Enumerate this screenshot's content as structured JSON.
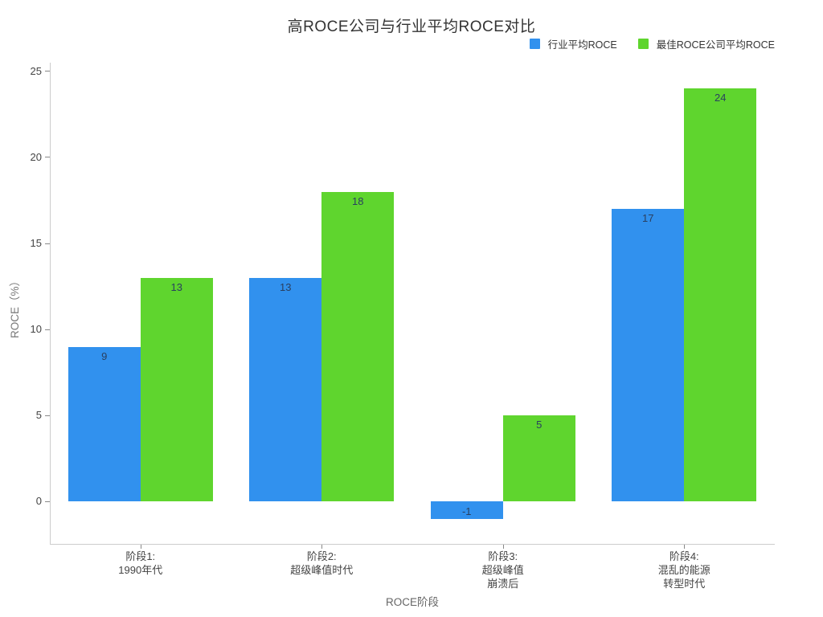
{
  "chart_data": {
    "type": "bar",
    "title": "高ROCE公司与行业平均ROCE对比",
    "xlabel": "ROCE阶段",
    "ylabel": "ROCE（%）",
    "categories": [
      [
        "阶段1:",
        "1990年代"
      ],
      [
        "阶段2:",
        "超级峰值时代"
      ],
      [
        "阶段3:",
        "超级峰值",
        "崩溃后"
      ],
      [
        "阶段4:",
        "混乱的能源",
        "转型时代"
      ]
    ],
    "series": [
      {
        "name": "行业平均ROCE",
        "color": "#3191ee",
        "values": [
          9,
          13,
          -1,
          17
        ]
      },
      {
        "name": "最佳ROCE公司平均ROCE",
        "color": "#5fd52e",
        "values": [
          13,
          18,
          5,
          24
        ]
      }
    ],
    "bar_labels": [
      [
        "9",
        "13",
        "-1",
        "17"
      ],
      [
        "13",
        "18",
        "5",
        "24"
      ]
    ],
    "yticks": [
      0,
      5,
      10,
      15,
      20,
      25
    ],
    "ylim": [
      -2.45,
      25.5
    ],
    "grid": false,
    "legend_position": "top-right",
    "colors": {
      "title": "#333333",
      "axis_line": "#cccccc",
      "tick_label": "#444444",
      "axis_title": "#666666",
      "bar_label": "#2a3f5f",
      "background": "#ffffff"
    }
  }
}
